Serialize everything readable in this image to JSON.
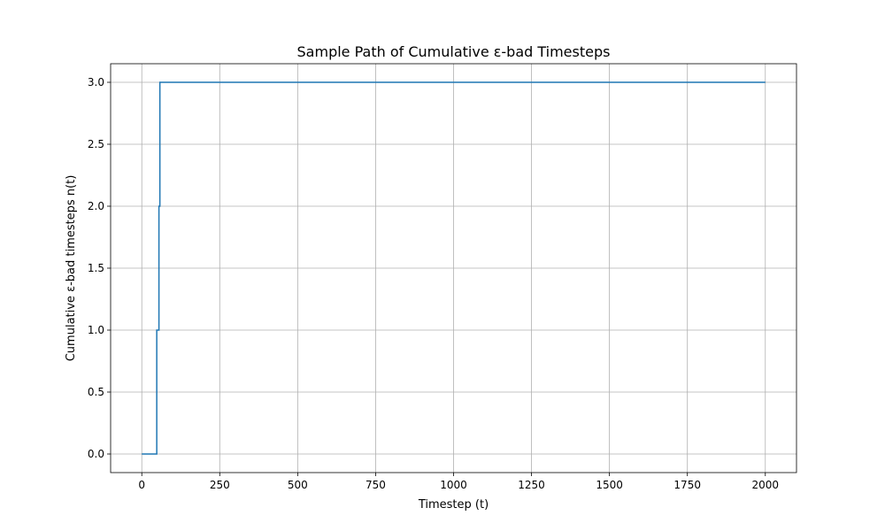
{
  "chart_data": {
    "type": "line",
    "title": "Sample Path of Cumulative ε-bad Timesteps",
    "xlabel": "Timestep (t)",
    "ylabel": "Cumulative ε-bad timesteps n(t)",
    "xlim": [
      -100,
      2100
    ],
    "ylim": [
      -0.15,
      3.15
    ],
    "xticks": [
      0,
      250,
      500,
      750,
      1000,
      1250,
      1500,
      1750,
      2000
    ],
    "xtick_labels": [
      "0",
      "250",
      "500",
      "750",
      "1000",
      "1250",
      "1500",
      "1750",
      "2000"
    ],
    "yticks": [
      0.0,
      0.5,
      1.0,
      1.5,
      2.0,
      2.5,
      3.0
    ],
    "ytick_labels": [
      "0.0",
      "0.5",
      "1.0",
      "1.5",
      "2.0",
      "2.5",
      "3.0"
    ],
    "grid": true,
    "legend": false,
    "line_color": "#1f77b4",
    "series": [
      {
        "step": "post",
        "x": [
          0,
          48,
          55,
          58,
          2000
        ],
        "y": [
          0,
          1,
          2,
          3,
          3
        ]
      }
    ]
  }
}
